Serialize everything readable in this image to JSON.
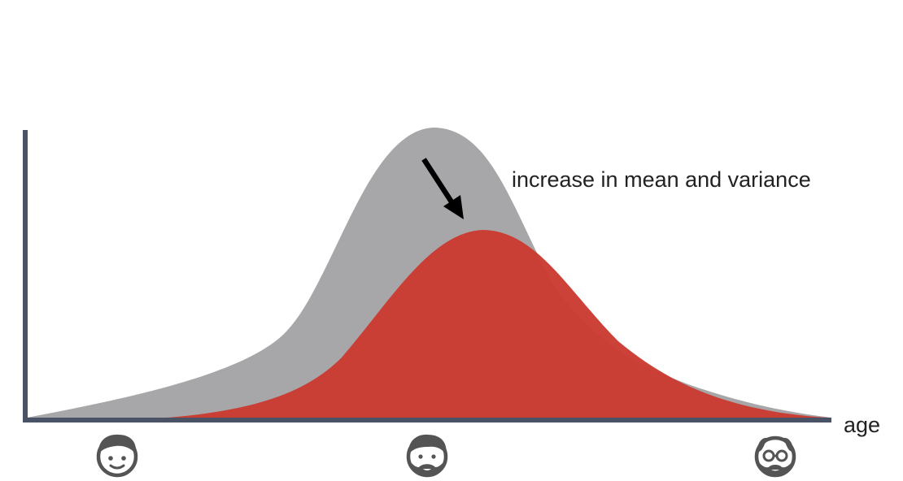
{
  "annotation": "increase in mean and variance",
  "axis": {
    "x_label": "age"
  },
  "colors": {
    "axis": "#4a5266",
    "before_distribution": "#a7a7a9",
    "after_distribution": "#cb3a30",
    "arrow": "#000000",
    "icon": "#545454"
  },
  "icons": [
    {
      "name": "young-face-icon",
      "meaning": "young"
    },
    {
      "name": "adult-face-icon",
      "meaning": "adult"
    },
    {
      "name": "elderly-face-icon",
      "meaning": "elderly"
    }
  ]
}
